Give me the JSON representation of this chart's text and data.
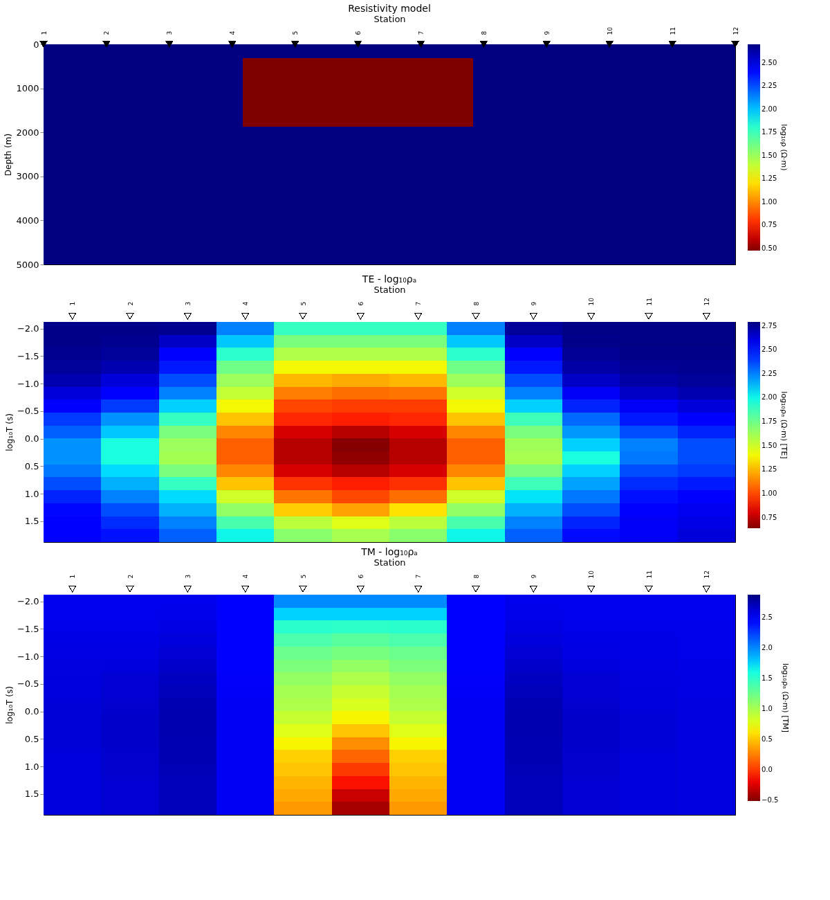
{
  "chart_data": [
    {
      "type": "heatmap",
      "title": "Resistivity model",
      "xlabel": "Station",
      "ylabel": "Depth  (m)",
      "clabel": "log₁₀ρ  (Ω·m)",
      "xlim": [
        1,
        12
      ],
      "xticks": [
        1,
        2,
        3,
        4,
        5,
        6,
        7,
        8,
        9,
        10,
        11,
        12
      ],
      "marker": "triangle",
      "ylim": [
        5000,
        0
      ],
      "yticks": [
        0,
        1000,
        2000,
        3000,
        4000,
        5000
      ],
      "cells": [
        [
          2.699,
          2.699,
          2.699,
          2.699,
          2.699,
          2.699,
          2.699,
          2.699,
          2.699,
          2.699,
          2.699,
          2.699,
          2.699,
          2.699,
          2.699,
          2.699,
          2.699,
          2.699,
          2.699,
          2.699,
          2.699,
          2.699,
          2.699,
          2.699,
          2.699,
          2.699,
          2.699,
          2.699,
          2.699,
          2.699,
          2.699,
          2.699,
          2.699,
          2.699,
          2.699,
          2.699,
          2.699,
          2.699,
          2.699,
          2.699,
          2.699,
          2.699,
          2.699,
          2.699,
          2.699,
          2.699,
          2.699,
          2.699,
          2.699,
          2.699,
          2.699,
          2.699,
          2.699,
          2.699,
          2.699,
          2.699,
          2.699,
          2.699,
          2.699,
          2.699,
          2.699,
          2.699,
          2.699,
          2.699,
          2.699,
          2.699
        ],
        [
          2.699,
          2.699,
          2.699,
          2.699,
          2.699,
          2.699,
          2.699,
          2.699,
          2.699,
          2.699,
          2.699,
          2.699,
          2.699,
          2.699,
          2.699,
          2.699,
          2.699,
          2.699,
          2.699,
          0.477,
          0.477,
          0.477,
          0.477,
          0.477,
          0.477,
          0.477,
          0.477,
          0.477,
          0.477,
          0.477,
          0.477,
          0.477,
          0.477,
          0.477,
          0.477,
          0.477,
          0.477,
          0.477,
          0.477,
          0.477,
          0.477,
          2.699,
          2.699,
          2.699,
          2.699,
          2.699,
          2.699,
          2.699,
          2.699,
          2.699,
          2.699,
          2.699,
          2.699,
          2.699,
          2.699,
          2.699,
          2.699,
          2.699,
          2.699,
          2.699,
          2.699,
          2.699,
          2.699,
          2.699,
          2.699,
          2.699
        ],
        [
          2.699,
          2.699,
          2.699,
          2.699,
          2.699,
          2.699,
          2.699,
          2.699,
          2.699,
          2.699,
          2.699,
          2.699,
          2.699,
          2.699,
          2.699,
          2.699,
          2.699,
          2.699,
          2.699,
          0.477,
          0.477,
          0.477,
          0.477,
          0.477,
          0.477,
          0.477,
          0.477,
          0.477,
          0.477,
          0.477,
          0.477,
          0.477,
          0.477,
          0.477,
          0.477,
          0.477,
          0.477,
          0.477,
          0.477,
          0.477,
          0.477,
          2.699,
          2.699,
          2.699,
          2.699,
          2.699,
          2.699,
          2.699,
          2.699,
          2.699,
          2.699,
          2.699,
          2.699,
          2.699,
          2.699,
          2.699,
          2.699,
          2.699,
          2.699,
          2.699,
          2.699,
          2.699,
          2.699,
          2.699,
          2.699,
          2.699
        ],
        [
          2.699,
          2.699,
          2.699,
          2.699,
          2.699,
          2.699,
          2.699,
          2.699,
          2.699,
          2.699,
          2.699,
          2.699,
          2.699,
          2.699,
          2.699,
          2.699,
          2.699,
          2.699,
          2.699,
          0.477,
          0.477,
          0.477,
          0.477,
          0.477,
          0.477,
          0.477,
          0.477,
          0.477,
          0.477,
          0.477,
          0.477,
          0.477,
          0.477,
          0.477,
          0.477,
          0.477,
          0.477,
          0.477,
          0.477,
          0.477,
          0.477,
          2.699,
          2.699,
          2.699,
          2.699,
          2.699,
          2.699,
          2.699,
          2.699,
          2.699,
          2.699,
          2.699,
          2.699,
          2.699,
          2.699,
          2.699,
          2.699,
          2.699,
          2.699,
          2.699,
          2.699,
          2.699,
          2.699,
          2.699,
          2.699,
          2.699
        ],
        [
          2.699,
          2.699,
          2.699,
          2.699,
          2.699,
          2.699,
          2.699,
          2.699,
          2.699,
          2.699,
          2.699,
          2.699,
          2.699,
          2.699,
          2.699,
          2.699,
          2.699,
          2.699,
          2.699,
          0.477,
          0.477,
          0.477,
          0.477,
          0.477,
          0.477,
          0.477,
          0.477,
          0.477,
          0.477,
          0.477,
          0.477,
          0.477,
          0.477,
          0.477,
          0.477,
          0.477,
          0.477,
          0.477,
          0.477,
          0.477,
          0.477,
          2.699,
          2.699,
          2.699,
          2.699,
          2.699,
          2.699,
          2.699,
          2.699,
          2.699,
          2.699,
          2.699,
          2.699,
          2.699,
          2.699,
          2.699,
          2.699,
          2.699,
          2.699,
          2.699,
          2.699,
          2.699,
          2.699,
          2.699,
          2.699,
          2.699
        ],
        [
          2.699,
          2.699,
          2.699,
          2.699,
          2.699,
          2.699,
          2.699,
          2.699,
          2.699,
          2.699,
          2.699,
          2.699,
          2.699,
          2.699,
          2.699,
          2.699,
          2.699,
          2.699,
          2.699,
          0.477,
          0.477,
          0.477,
          0.477,
          0.477,
          0.477,
          0.477,
          0.477,
          0.477,
          0.477,
          0.477,
          0.477,
          0.477,
          0.477,
          0.477,
          0.477,
          0.477,
          0.477,
          0.477,
          0.477,
          0.477,
          0.477,
          2.699,
          2.699,
          2.699,
          2.699,
          2.699,
          2.699,
          2.699,
          2.699,
          2.699,
          2.699,
          2.699,
          2.699,
          2.699,
          2.699,
          2.699,
          2.699,
          2.699,
          2.699,
          2.699,
          2.699,
          2.699,
          2.699,
          2.699,
          2.699,
          2.699
        ],
        [
          2.699,
          2.699,
          2.699,
          2.699,
          2.699,
          2.699,
          2.699,
          2.699,
          2.699,
          2.699,
          2.699,
          2.699,
          2.699,
          2.699,
          2.699,
          2.699,
          2.699,
          2.699,
          2.699,
          2.699,
          2.699,
          2.699,
          2.699,
          2.699,
          2.699,
          2.699,
          2.699,
          2.699,
          2.699,
          2.699,
          2.699,
          2.699,
          2.699,
          2.699,
          2.699,
          2.699,
          2.699,
          2.699,
          2.699,
          2.699,
          2.699,
          2.699,
          2.699,
          2.699,
          2.699,
          2.699,
          2.699,
          2.699,
          2.699,
          2.699,
          2.699,
          2.699,
          2.699,
          2.699,
          2.699,
          2.699,
          2.699,
          2.699,
          2.699,
          2.699,
          2.699,
          2.699,
          2.699,
          2.699,
          2.699,
          2.699
        ],
        [
          2.699,
          2.699,
          2.699,
          2.699,
          2.699,
          2.699,
          2.699,
          2.699,
          2.699,
          2.699,
          2.699,
          2.699,
          2.699,
          2.699,
          2.699,
          2.699,
          2.699,
          2.699,
          2.699,
          2.699,
          2.699,
          2.699,
          2.699,
          2.699,
          2.699,
          2.699,
          2.699,
          2.699,
          2.699,
          2.699,
          2.699,
          2.699,
          2.699,
          2.699,
          2.699,
          2.699,
          2.699,
          2.699,
          2.699,
          2.699,
          2.699,
          2.699,
          2.699,
          2.699,
          2.699,
          2.699,
          2.699,
          2.699,
          2.699,
          2.699,
          2.699,
          2.699,
          2.699,
          2.699,
          2.699,
          2.699,
          2.699,
          2.699,
          2.699,
          2.699,
          2.699,
          2.699,
          2.699,
          2.699,
          2.699,
          2.699
        ],
        [
          2.699,
          2.699,
          2.699,
          2.699,
          2.699,
          2.699,
          2.699,
          2.699,
          2.699,
          2.699,
          2.699,
          2.699,
          2.699,
          2.699,
          2.699,
          2.699,
          2.699,
          2.699,
          2.699,
          2.699,
          2.699,
          2.699,
          2.699,
          2.699,
          2.699,
          2.699,
          2.699,
          2.699,
          2.699,
          2.699,
          2.699,
          2.699,
          2.699,
          2.699,
          2.699,
          2.699,
          2.699,
          2.699,
          2.699,
          2.699,
          2.699,
          2.699,
          2.699,
          2.699,
          2.699,
          2.699,
          2.699,
          2.699,
          2.699,
          2.699,
          2.699,
          2.699,
          2.699,
          2.699,
          2.699,
          2.699,
          2.699,
          2.699,
          2.699,
          2.699,
          2.699,
          2.699,
          2.699,
          2.699,
          2.699,
          2.699
        ],
        [
          2.699,
          2.699,
          2.699,
          2.699,
          2.699,
          2.699,
          2.699,
          2.699,
          2.699,
          2.699,
          2.699,
          2.699,
          2.699,
          2.699,
          2.699,
          2.699,
          2.699,
          2.699,
          2.699,
          2.699,
          2.699,
          2.699,
          2.699,
          2.699,
          2.699,
          2.699,
          2.699,
          2.699,
          2.699,
          2.699,
          2.699,
          2.699,
          2.699,
          2.699,
          2.699,
          2.699,
          2.699,
          2.699,
          2.699,
          2.699,
          2.699,
          2.699,
          2.699,
          2.699,
          2.699,
          2.699,
          2.699,
          2.699,
          2.699,
          2.699,
          2.699,
          2.699,
          2.699,
          2.699,
          2.699,
          2.699,
          2.699,
          2.699,
          2.699,
          2.699,
          2.699,
          2.699,
          2.699,
          2.699,
          2.699,
          2.699
        ],
        [
          2.699,
          2.699,
          2.699,
          2.699,
          2.699,
          2.699,
          2.699,
          2.699,
          2.699,
          2.699,
          2.699,
          2.699,
          2.699,
          2.699,
          2.699,
          2.699,
          2.699,
          2.699,
          2.699,
          2.699,
          2.699,
          2.699,
          2.699,
          2.699,
          2.699,
          2.699,
          2.699,
          2.699,
          2.699,
          2.699,
          2.699,
          2.699,
          2.699,
          2.699,
          2.699,
          2.699,
          2.699,
          2.699,
          2.699,
          2.699,
          2.699,
          2.699,
          2.699,
          2.699,
          2.699,
          2.699,
          2.699,
          2.699,
          2.699,
          2.699,
          2.699,
          2.699,
          2.699,
          2.699,
          2.699,
          2.699,
          2.699,
          2.699,
          2.699,
          2.699,
          2.699,
          2.699,
          2.699,
          2.699,
          2.699,
          2.699
        ],
        [
          2.699,
          2.699,
          2.699,
          2.699,
          2.699,
          2.699,
          2.699,
          2.699,
          2.699,
          2.699,
          2.699,
          2.699,
          2.699,
          2.699,
          2.699,
          2.699,
          2.699,
          2.699,
          2.699,
          2.699,
          2.699,
          2.699,
          2.699,
          2.699,
          2.699,
          2.699,
          2.699,
          2.699,
          2.699,
          2.699,
          2.699,
          2.699,
          2.699,
          2.699,
          2.699,
          2.699,
          2.699,
          2.699,
          2.699,
          2.699,
          2.699,
          2.699,
          2.699,
          2.699,
          2.699,
          2.699,
          2.699,
          2.699,
          2.699,
          2.699,
          2.699,
          2.699,
          2.699,
          2.699,
          2.699,
          2.699,
          2.699,
          2.699,
          2.699,
          2.699,
          2.699,
          2.699,
          2.699,
          2.699,
          2.699,
          2.699
        ],
        [
          2.699,
          2.699,
          2.699,
          2.699,
          2.699,
          2.699,
          2.699,
          2.699,
          2.699,
          2.699,
          2.699,
          2.699,
          2.699,
          2.699,
          2.699,
          2.699,
          2.699,
          2.699,
          2.699,
          2.699,
          2.699,
          2.699,
          2.699,
          2.699,
          2.699,
          2.699,
          2.699,
          2.699,
          2.699,
          2.699,
          2.699,
          2.699,
          2.699,
          2.699,
          2.699,
          2.699,
          2.699,
          2.699,
          2.699,
          2.699,
          2.699,
          2.699,
          2.699,
          2.699,
          2.699,
          2.699,
          2.699,
          2.699,
          2.699,
          2.699,
          2.699,
          2.699,
          2.699,
          2.699,
          2.699,
          2.699,
          2.699,
          2.699,
          2.699,
          2.699,
          2.699,
          2.699,
          2.699,
          2.699,
          2.699,
          2.699
        ],
        [
          2.699,
          2.699,
          2.699,
          2.699,
          2.699,
          2.699,
          2.699,
          2.699,
          2.699,
          2.699,
          2.699,
          2.699,
          2.699,
          2.699,
          2.699,
          2.699,
          2.699,
          2.699,
          2.699,
          2.699,
          2.699,
          2.699,
          2.699,
          2.699,
          2.699,
          2.699,
          2.699,
          2.699,
          2.699,
          2.699,
          2.699,
          2.699,
          2.699,
          2.699,
          2.699,
          2.699,
          2.699,
          2.699,
          2.699,
          2.699,
          2.699,
          2.699,
          2.699,
          2.699,
          2.699,
          2.699,
          2.699,
          2.699,
          2.699,
          2.699,
          2.699,
          2.699,
          2.699,
          2.699,
          2.699,
          2.699,
          2.699,
          2.699,
          2.699,
          2.699,
          2.699,
          2.699,
          2.699,
          2.699,
          2.699,
          2.699
        ],
        [
          2.699,
          2.699,
          2.699,
          2.699,
          2.699,
          2.699,
          2.699,
          2.699,
          2.699,
          2.699,
          2.699,
          2.699,
          2.699,
          2.699,
          2.699,
          2.699,
          2.699,
          2.699,
          2.699,
          2.699,
          2.699,
          2.699,
          2.699,
          2.699,
          2.699,
          2.699,
          2.699,
          2.699,
          2.699,
          2.699,
          2.699,
          2.699,
          2.699,
          2.699,
          2.699,
          2.699,
          2.699,
          2.699,
          2.699,
          2.699,
          2.699,
          2.699,
          2.699,
          2.699,
          2.699,
          2.699,
          2.699,
          2.699,
          2.699,
          2.699,
          2.699,
          2.699,
          2.699,
          2.699,
          2.699,
          2.699,
          2.699,
          2.699,
          2.699,
          2.699,
          2.699,
          2.699,
          2.699,
          2.699,
          2.699,
          2.699
        ],
        [
          2.699,
          2.699,
          2.699,
          2.699,
          2.699,
          2.699,
          2.699,
          2.699,
          2.699,
          2.699,
          2.699,
          2.699,
          2.699,
          2.699,
          2.699,
          2.699,
          2.699,
          2.699,
          2.699,
          2.699,
          2.699,
          2.699,
          2.699,
          2.699,
          2.699,
          2.699,
          2.699,
          2.699,
          2.699,
          2.699,
          2.699,
          2.699,
          2.699,
          2.699,
          2.699,
          2.699,
          2.699,
          2.699,
          2.699,
          2.699,
          2.699,
          2.699,
          2.699,
          2.699,
          2.699,
          2.699,
          2.699,
          2.699,
          2.699,
          2.699,
          2.699,
          2.699,
          2.699,
          2.699,
          2.699,
          2.699,
          2.699,
          2.699,
          2.699,
          2.699,
          2.699,
          2.699,
          2.699,
          2.699,
          2.699,
          2.699
        ]
      ],
      "clim": [
        0.477,
        2.699
      ],
      "cticks": [
        {
          "value": 0.5,
          "label": "0.50"
        },
        {
          "value": 0.75,
          "label": "0.75"
        },
        {
          "value": 1.0,
          "label": "1.00"
        },
        {
          "value": 1.25,
          "label": "1.25"
        },
        {
          "value": 1.5,
          "label": "1.50"
        },
        {
          "value": 1.75,
          "label": "1.75"
        },
        {
          "value": 2.0,
          "label": "2.00"
        },
        {
          "value": 2.25,
          "label": "2.25"
        },
        {
          "value": 2.5,
          "label": "2.50"
        }
      ]
    },
    {
      "type": "heatmap",
      "title": "TE - log₁₀ρₐ",
      "xlabel": "Station",
      "ylabel": "log₁₀T  (s)",
      "clabel": "log₁₀ρₐ  (Ω·m)  [TE]",
      "marker": "triangle",
      "categories": [
        "1",
        "2",
        "3",
        "4",
        "5",
        "6",
        "7",
        "8",
        "9",
        "10",
        "11",
        "12"
      ],
      "ylim": [
        1.88,
        -2.12
      ],
      "yticks": [
        {
          "value": -2,
          "label": "−2.0"
        },
        {
          "value": -1.5,
          "label": "−1.5"
        },
        {
          "value": -1,
          "label": "−1.0"
        },
        {
          "value": -0.5,
          "label": "−0.5"
        },
        {
          "value": 0,
          "label": "0.0"
        },
        {
          "value": 0.5,
          "label": "0.5"
        },
        {
          "value": 1,
          "label": "1.0"
        },
        {
          "value": 1.5,
          "label": "1.5"
        }
      ],
      "cells": [
        [
          2.77,
          2.77,
          2.76,
          2.25,
          1.9,
          1.9,
          1.9,
          2.25,
          2.74,
          2.78,
          2.78,
          2.78
        ],
        [
          2.77,
          2.76,
          2.66,
          2.1,
          1.72,
          1.72,
          1.72,
          2.1,
          2.66,
          2.77,
          2.78,
          2.78
        ],
        [
          2.76,
          2.74,
          2.53,
          1.93,
          1.58,
          1.58,
          1.58,
          1.93,
          2.53,
          2.75,
          2.77,
          2.77
        ],
        [
          2.74,
          2.7,
          2.47,
          1.75,
          1.4,
          1.4,
          1.4,
          1.75,
          2.47,
          2.72,
          2.75,
          2.76
        ],
        [
          2.7,
          2.62,
          2.36,
          1.63,
          1.25,
          1.22,
          1.25,
          1.63,
          2.36,
          2.66,
          2.72,
          2.74
        ],
        [
          2.62,
          2.55,
          2.25,
          1.53,
          1.12,
          1.08,
          1.1,
          1.5,
          2.25,
          2.57,
          2.66,
          2.7
        ],
        [
          2.53,
          2.4,
          2.08,
          1.4,
          0.99,
          0.97,
          0.97,
          1.4,
          2.08,
          2.45,
          2.57,
          2.62
        ],
        [
          2.4,
          2.21,
          1.9,
          1.28,
          0.92,
          0.9,
          0.92,
          1.28,
          1.88,
          2.3,
          2.47,
          2.53
        ],
        [
          2.32,
          2.1,
          1.72,
          1.14,
          0.8,
          0.74,
          0.8,
          1.14,
          1.72,
          2.2,
          2.36,
          2.45
        ],
        [
          2.21,
          1.97,
          1.63,
          1.05,
          0.74,
          0.65,
          0.74,
          1.05,
          1.62,
          2.08,
          2.25,
          2.36
        ],
        [
          2.21,
          1.97,
          1.61,
          1.05,
          0.74,
          0.67,
          0.74,
          1.05,
          1.6,
          1.97,
          2.27,
          2.36
        ],
        [
          2.27,
          2.06,
          1.72,
          1.14,
          0.8,
          0.74,
          0.8,
          1.14,
          1.72,
          2.08,
          2.36,
          2.4
        ],
        [
          2.36,
          2.15,
          1.9,
          1.28,
          0.95,
          0.9,
          0.94,
          1.28,
          1.88,
          2.18,
          2.43,
          2.47
        ],
        [
          2.45,
          2.25,
          2.06,
          1.5,
          1.1,
          1.0,
          1.08,
          1.5,
          2.04,
          2.27,
          2.49,
          2.53
        ],
        [
          2.51,
          2.36,
          2.15,
          1.66,
          1.3,
          1.2,
          1.35,
          1.66,
          2.15,
          2.36,
          2.55,
          2.58
        ],
        [
          2.53,
          2.43,
          2.25,
          1.85,
          1.55,
          1.45,
          1.55,
          1.85,
          2.25,
          2.45,
          2.57,
          2.6
        ],
        [
          2.53,
          2.49,
          2.32,
          2.0,
          1.68,
          1.6,
          1.68,
          2.0,
          2.32,
          2.5,
          2.57,
          2.62
        ]
      ],
      "clim": [
        0.64,
        2.79
      ],
      "cticks": [
        {
          "value": 0.75,
          "label": "0.75"
        },
        {
          "value": 1.0,
          "label": "1.00"
        },
        {
          "value": 1.25,
          "label": "1.25"
        },
        {
          "value": 1.5,
          "label": "1.50"
        },
        {
          "value": 1.75,
          "label": "1.75"
        },
        {
          "value": 2.0,
          "label": "2.00"
        },
        {
          "value": 2.25,
          "label": "2.25"
        },
        {
          "value": 2.5,
          "label": "2.50"
        },
        {
          "value": 2.75,
          "label": "2.75"
        }
      ]
    },
    {
      "type": "heatmap",
      "title": "TM - log₁₀ρₐ",
      "xlabel": "Station",
      "ylabel": "log₁₀T  (s)",
      "clabel": "log₁₀ρₐ  (Ω·m)  [TM]",
      "marker": "triangle",
      "categories": [
        "1",
        "2",
        "3",
        "4",
        "5",
        "6",
        "7",
        "8",
        "9",
        "10",
        "11",
        "12"
      ],
      "ylim": [
        1.88,
        -2.12
      ],
      "yticks": [
        {
          "value": -2,
          "label": "−2.0"
        },
        {
          "value": -1.5,
          "label": "−1.5"
        },
        {
          "value": -1,
          "label": "−1.0"
        },
        {
          "value": -0.5,
          "label": "−0.5"
        },
        {
          "value": 0,
          "label": "0.0"
        },
        {
          "value": 0.5,
          "label": "0.5"
        },
        {
          "value": 1,
          "label": "1.0"
        },
        {
          "value": 1.5,
          "label": "1.5"
        }
      ],
      "cells": [
        [
          2.55,
          2.55,
          2.55,
          2.46,
          1.99,
          1.99,
          1.99,
          2.46,
          2.55,
          2.55,
          2.55,
          2.55
        ],
        [
          2.55,
          2.55,
          2.56,
          2.46,
          1.75,
          1.75,
          1.75,
          2.46,
          2.56,
          2.55,
          2.55,
          2.55
        ],
        [
          2.56,
          2.56,
          2.58,
          2.46,
          1.52,
          1.5,
          1.52,
          2.46,
          2.58,
          2.56,
          2.56,
          2.56
        ],
        [
          2.57,
          2.57,
          2.6,
          2.47,
          1.38,
          1.32,
          1.38,
          2.47,
          2.6,
          2.57,
          2.57,
          2.56
        ],
        [
          2.58,
          2.58,
          2.62,
          2.48,
          1.25,
          1.2,
          1.25,
          2.48,
          2.62,
          2.58,
          2.57,
          2.56
        ],
        [
          2.59,
          2.6,
          2.65,
          2.5,
          1.18,
          1.08,
          1.18,
          2.5,
          2.65,
          2.6,
          2.58,
          2.57
        ],
        [
          2.6,
          2.62,
          2.68,
          2.51,
          1.08,
          0.98,
          1.08,
          2.51,
          2.68,
          2.62,
          2.59,
          2.58
        ],
        [
          2.6,
          2.63,
          2.7,
          2.52,
          1.01,
          0.88,
          1.01,
          2.52,
          2.7,
          2.63,
          2.6,
          2.58
        ],
        [
          2.61,
          2.64,
          2.72,
          2.53,
          0.98,
          0.8,
          0.98,
          2.53,
          2.72,
          2.64,
          2.6,
          2.59
        ],
        [
          2.61,
          2.65,
          2.73,
          2.53,
          0.88,
          0.67,
          0.88,
          2.53,
          2.73,
          2.65,
          2.61,
          2.59
        ],
        [
          2.61,
          2.65,
          2.73,
          2.53,
          0.77,
          0.5,
          0.77,
          2.53,
          2.73,
          2.65,
          2.61,
          2.59
        ],
        [
          2.61,
          2.65,
          2.72,
          2.53,
          0.67,
          0.3,
          0.67,
          2.53,
          2.72,
          2.65,
          2.61,
          2.59
        ],
        [
          2.6,
          2.64,
          2.72,
          2.53,
          0.54,
          0.16,
          0.54,
          2.53,
          2.72,
          2.64,
          2.6,
          2.59
        ],
        [
          2.6,
          2.64,
          2.71,
          2.53,
          0.5,
          0.0,
          0.5,
          2.53,
          2.71,
          2.64,
          2.6,
          2.59
        ],
        [
          2.6,
          2.63,
          2.7,
          2.53,
          0.44,
          -0.15,
          0.44,
          2.53,
          2.7,
          2.63,
          2.6,
          2.59
        ],
        [
          2.6,
          2.63,
          2.7,
          2.53,
          0.4,
          -0.3,
          0.4,
          2.53,
          2.7,
          2.63,
          2.6,
          2.59
        ],
        [
          2.6,
          2.63,
          2.7,
          2.53,
          0.34,
          -0.4,
          0.34,
          2.53,
          2.7,
          2.63,
          2.6,
          2.59
        ]
      ],
      "clim": [
        -0.51,
        2.87
      ],
      "cticks": [
        {
          "value": -0.5,
          "label": "−0.5"
        },
        {
          "value": 0.0,
          "label": "0.0"
        },
        {
          "value": 0.5,
          "label": "0.5"
        },
        {
          "value": 1.0,
          "label": "1.0"
        },
        {
          "value": 1.5,
          "label": "1.5"
        },
        {
          "value": 2.0,
          "label": "2.0"
        },
        {
          "value": 2.5,
          "label": "2.5"
        }
      ]
    }
  ]
}
